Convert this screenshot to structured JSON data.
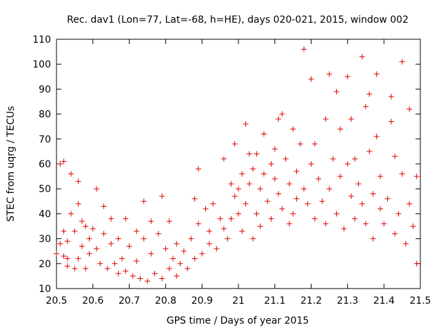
{
  "chart_data": {
    "type": "scatter",
    "title": "Rec. dav1 (Lon=77, Lat=-68, h=HE), days 020-021, 2015, window 002",
    "xlabel": "GPS time / Days of year 2015",
    "ylabel": "STEC from uqrg / TECUs",
    "xlim": [
      20.5,
      21.5
    ],
    "ylim": [
      10,
      110
    ],
    "xticks": [
      20.5,
      20.6,
      20.7,
      20.8,
      20.9,
      21,
      21.1,
      21.2,
      21.3,
      21.4,
      21.5
    ],
    "xtick_labels": [
      "20.5",
      "20.6",
      "20.7",
      "20.8",
      "20.9",
      "21",
      "21.1",
      "21.2",
      "21.3",
      "21.4",
      "21.5"
    ],
    "yticks": [
      10,
      20,
      30,
      40,
      50,
      60,
      70,
      80,
      90,
      100,
      110
    ],
    "ytick_labels": [
      "10",
      "20",
      "30",
      "40",
      "50",
      "60",
      "70",
      "80",
      "90",
      "100",
      "110"
    ],
    "grid": false,
    "marker": "+",
    "color": "#dd0000",
    "series": [
      {
        "values": [
          [
            20.5,
            24
          ],
          [
            20.51,
            28
          ],
          [
            20.51,
            60
          ],
          [
            20.52,
            61
          ],
          [
            20.52,
            23
          ],
          [
            20.52,
            33
          ],
          [
            20.53,
            22
          ],
          [
            20.53,
            19
          ],
          [
            20.53,
            29
          ],
          [
            20.54,
            56
          ],
          [
            20.54,
            40
          ],
          [
            20.55,
            18
          ],
          [
            20.55,
            33
          ],
          [
            20.56,
            53
          ],
          [
            20.56,
            44
          ],
          [
            20.56,
            22
          ],
          [
            20.57,
            27
          ],
          [
            20.57,
            37
          ],
          [
            20.58,
            35
          ],
          [
            20.58,
            18
          ],
          [
            20.59,
            30
          ],
          [
            20.59,
            24
          ],
          [
            20.6,
            34
          ],
          [
            20.61,
            50
          ],
          [
            20.61,
            26
          ],
          [
            20.62,
            20
          ],
          [
            20.63,
            43
          ],
          [
            20.63,
            32
          ],
          [
            20.64,
            18
          ],
          [
            20.65,
            28
          ],
          [
            20.65,
            38
          ],
          [
            20.66,
            20
          ],
          [
            20.67,
            16
          ],
          [
            20.67,
            30
          ],
          [
            20.68,
            22
          ],
          [
            20.69,
            38
          ],
          [
            20.69,
            17
          ],
          [
            20.7,
            27
          ],
          [
            20.71,
            15
          ],
          [
            20.72,
            33
          ],
          [
            20.72,
            21
          ],
          [
            20.73,
            14
          ],
          [
            20.74,
            30
          ],
          [
            20.74,
            45
          ],
          [
            20.75,
            13
          ],
          [
            20.76,
            24
          ],
          [
            20.76,
            37
          ],
          [
            20.77,
            16
          ],
          [
            20.78,
            32
          ],
          [
            20.79,
            14
          ],
          [
            20.79,
            47
          ],
          [
            20.8,
            26
          ],
          [
            20.81,
            18
          ],
          [
            20.81,
            37
          ],
          [
            20.82,
            22
          ],
          [
            20.83,
            15
          ],
          [
            20.83,
            28
          ],
          [
            20.84,
            20
          ],
          [
            20.85,
            25
          ],
          [
            20.86,
            18
          ],
          [
            20.87,
            30
          ],
          [
            20.88,
            22
          ],
          [
            20.88,
            46
          ],
          [
            20.89,
            36
          ],
          [
            20.89,
            58
          ],
          [
            20.9,
            24
          ],
          [
            20.91,
            42
          ],
          [
            20.92,
            28
          ],
          [
            20.92,
            33
          ],
          [
            20.93,
            44
          ],
          [
            20.94,
            26
          ],
          [
            20.95,
            38
          ],
          [
            20.96,
            34
          ],
          [
            20.96,
            62
          ],
          [
            20.97,
            30
          ],
          [
            20.98,
            52
          ],
          [
            20.98,
            38
          ],
          [
            20.99,
            68
          ],
          [
            20.99,
            47
          ],
          [
            21.0,
            40
          ],
          [
            21.0,
            50
          ],
          [
            21.01,
            56
          ],
          [
            21.01,
            33
          ],
          [
            21.02,
            76
          ],
          [
            21.02,
            44
          ],
          [
            21.03,
            64
          ],
          [
            21.03,
            52
          ],
          [
            21.04,
            30
          ],
          [
            21.04,
            58
          ],
          [
            21.05,
            64
          ],
          [
            21.05,
            40
          ],
          [
            21.06,
            50
          ],
          [
            21.06,
            35
          ],
          [
            21.07,
            72
          ],
          [
            21.07,
            56
          ],
          [
            21.08,
            45
          ],
          [
            21.09,
            60
          ],
          [
            21.09,
            38
          ],
          [
            21.1,
            54
          ],
          [
            21.1,
            66
          ],
          [
            21.11,
            78
          ],
          [
            21.11,
            48
          ],
          [
            21.12,
            80
          ],
          [
            21.12,
            42
          ],
          [
            21.13,
            62
          ],
          [
            21.14,
            36
          ],
          [
            21.14,
            52
          ],
          [
            21.15,
            74
          ],
          [
            21.15,
            40
          ],
          [
            21.16,
            57
          ],
          [
            21.16,
            46
          ],
          [
            21.17,
            68
          ],
          [
            21.18,
            106
          ],
          [
            21.18,
            50
          ],
          [
            21.19,
            44
          ],
          [
            21.2,
            94
          ],
          [
            21.2,
            60
          ],
          [
            21.21,
            38
          ],
          [
            21.21,
            68
          ],
          [
            21.22,
            54
          ],
          [
            21.23,
            45
          ],
          [
            21.24,
            78
          ],
          [
            21.24,
            36
          ],
          [
            21.25,
            96
          ],
          [
            21.25,
            50
          ],
          [
            21.26,
            62
          ],
          [
            21.27,
            89
          ],
          [
            21.27,
            40
          ],
          [
            21.28,
            74
          ],
          [
            21.28,
            55
          ],
          [
            21.29,
            34
          ],
          [
            21.3,
            60
          ],
          [
            21.3,
            95
          ],
          [
            21.31,
            47
          ],
          [
            21.31,
            78
          ],
          [
            21.32,
            62
          ],
          [
            21.32,
            38
          ],
          [
            21.33,
            52
          ],
          [
            21.34,
            103
          ],
          [
            21.34,
            44
          ],
          [
            21.35,
            83
          ],
          [
            21.35,
            36
          ],
          [
            21.36,
            65
          ],
          [
            21.36,
            88
          ],
          [
            21.37,
            48
          ],
          [
            21.37,
            30
          ],
          [
            21.38,
            71
          ],
          [
            21.38,
            96
          ],
          [
            21.39,
            42
          ],
          [
            21.39,
            55
          ],
          [
            21.4,
            36
          ],
          [
            21.41,
            46
          ],
          [
            21.42,
            87
          ],
          [
            21.42,
            77
          ],
          [
            21.43,
            32
          ],
          [
            21.43,
            63
          ],
          [
            21.44,
            40
          ],
          [
            21.45,
            101
          ],
          [
            21.45,
            56
          ],
          [
            21.46,
            28
          ],
          [
            21.47,
            82
          ],
          [
            21.47,
            44
          ],
          [
            21.48,
            35
          ],
          [
            21.49,
            55
          ],
          [
            21.49,
            20
          ]
        ]
      }
    ]
  }
}
